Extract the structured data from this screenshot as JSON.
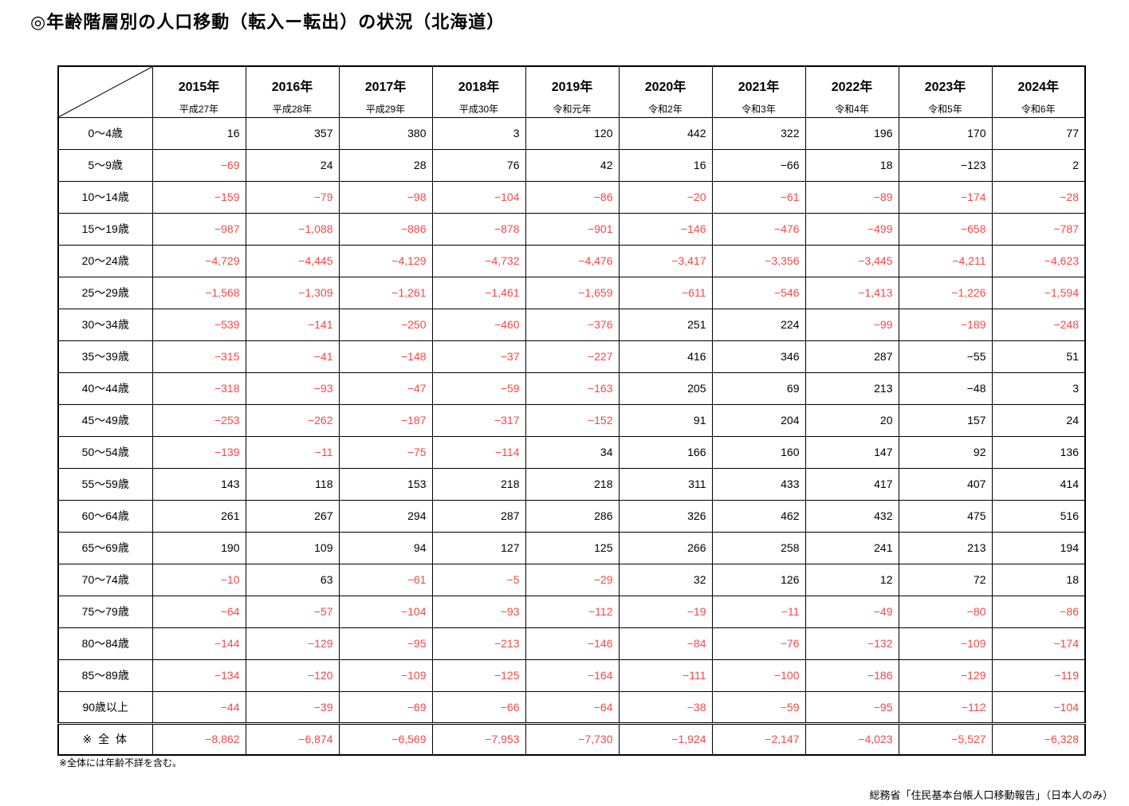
{
  "title": "◎年齢階層別の人口移動（転入ー転出）の状況（北海道）",
  "table": {
    "columns": [
      {
        "year": "2015年",
        "era": "平成27年"
      },
      {
        "year": "2016年",
        "era": "平成28年"
      },
      {
        "year": "2017年",
        "era": "平成29年"
      },
      {
        "year": "2018年",
        "era": "平成30年"
      },
      {
        "year": "2019年",
        "era": "令和元年"
      },
      {
        "year": "2020年",
        "era": "令和2年"
      },
      {
        "year": "2021年",
        "era": "令和3年"
      },
      {
        "year": "2022年",
        "era": "令和4年"
      },
      {
        "year": "2023年",
        "era": "令和5年"
      },
      {
        "year": "2024年",
        "era": "令和6年"
      }
    ],
    "rows": [
      {
        "label": "0～4歳",
        "values": [
          "16",
          "357",
          "380",
          "3",
          "120",
          "442",
          "322",
          "196",
          "170",
          "77"
        ]
      },
      {
        "label": "5～9歳",
        "values": [
          "-69",
          "24",
          "28",
          "76",
          "42",
          "16",
          "-66",
          "18",
          "-123",
          "2"
        ]
      },
      {
        "label": "10～14歳",
        "values": [
          "-159",
          "-79",
          "-98",
          "-104",
          "-86",
          "-20",
          "-61",
          "-89",
          "-174",
          "-28"
        ]
      },
      {
        "label": "15～19歳",
        "values": [
          "-987",
          "-1,088",
          "-886",
          "-878",
          "-901",
          "-146",
          "-476",
          "-499",
          "-658",
          "-787"
        ]
      },
      {
        "label": "20～24歳",
        "values": [
          "-4,729",
          "-4,445",
          "-4,129",
          "-4,732",
          "-4,476",
          "-3,417",
          "-3,356",
          "-3,445",
          "-4,211",
          "-4,623"
        ]
      },
      {
        "label": "25～29歳",
        "values": [
          "-1,568",
          "-1,309",
          "-1,261",
          "-1,461",
          "-1,659",
          "-611",
          "-546",
          "-1,413",
          "-1,226",
          "-1,594"
        ]
      },
      {
        "label": "30～34歳",
        "values": [
          "-539",
          "-141",
          "-250",
          "-460",
          "-376",
          "251",
          "224",
          "-99",
          "-189",
          "-248"
        ]
      },
      {
        "label": "35～39歳",
        "values": [
          "-315",
          "-41",
          "-148",
          "-37",
          "-227",
          "416",
          "346",
          "287",
          "-55",
          "51"
        ]
      },
      {
        "label": "40～44歳",
        "values": [
          "-318",
          "-93",
          "-47",
          "-59",
          "-163",
          "205",
          "69",
          "213",
          "-48",
          "3"
        ]
      },
      {
        "label": "45～49歳",
        "values": [
          "-253",
          "-262",
          "-187",
          "-317",
          "-152",
          "91",
          "204",
          "20",
          "157",
          "24"
        ]
      },
      {
        "label": "50～54歳",
        "values": [
          "-139",
          "-11",
          "-75",
          "-114",
          "34",
          "166",
          "160",
          "147",
          "92",
          "136"
        ]
      },
      {
        "label": "55～59歳",
        "values": [
          "143",
          "118",
          "153",
          "218",
          "218",
          "311",
          "433",
          "417",
          "407",
          "414"
        ]
      },
      {
        "label": "60～64歳",
        "values": [
          "261",
          "267",
          "294",
          "287",
          "286",
          "326",
          "462",
          "432",
          "475",
          "516"
        ]
      },
      {
        "label": "65～69歳",
        "values": [
          "190",
          "109",
          "94",
          "127",
          "125",
          "266",
          "258",
          "241",
          "213",
          "194"
        ]
      },
      {
        "label": "70～74歳",
        "values": [
          "-10",
          "63",
          "-61",
          "-5",
          "-29",
          "32",
          "126",
          "12",
          "72",
          "18"
        ]
      },
      {
        "label": "75～79歳",
        "values": [
          "-64",
          "-57",
          "-104",
          "-93",
          "-112",
          "-19",
          "-11",
          "-49",
          "-80",
          "-86"
        ]
      },
      {
        "label": "80～84歳",
        "values": [
          "-144",
          "-129",
          "-95",
          "-213",
          "-146",
          "-84",
          "-76",
          "-132",
          "-109",
          "-174"
        ]
      },
      {
        "label": "85～89歳",
        "values": [
          "-134",
          "-120",
          "-109",
          "-125",
          "-164",
          "-111",
          "-100",
          "-186",
          "-129",
          "-119"
        ]
      },
      {
        "label": "90歳以上",
        "values": [
          "-44",
          "-39",
          "-69",
          "-66",
          "-64",
          "-38",
          "-59",
          "-95",
          "-112",
          "-104"
        ]
      }
    ],
    "total_row": {
      "label": "※ 全 体",
      "values": [
        "-8,862",
        "-6,874",
        "-6,569",
        "-7,953",
        "-7,730",
        "-1,924",
        "-2,147",
        "-4,023",
        "-5,527",
        "-6,328"
      ]
    },
    "black_negative_cells": [
      [
        1,
        6
      ],
      [
        1,
        8
      ],
      [
        7,
        8
      ],
      [
        8,
        8
      ]
    ],
    "colors": {
      "negative_text": "#ff4545",
      "normal_text": "#000000"
    }
  },
  "footnote": "※全体には年齢不詳を含む。",
  "source": "総務省「住民基本台帳人口移動報告」（日本人のみ）"
}
